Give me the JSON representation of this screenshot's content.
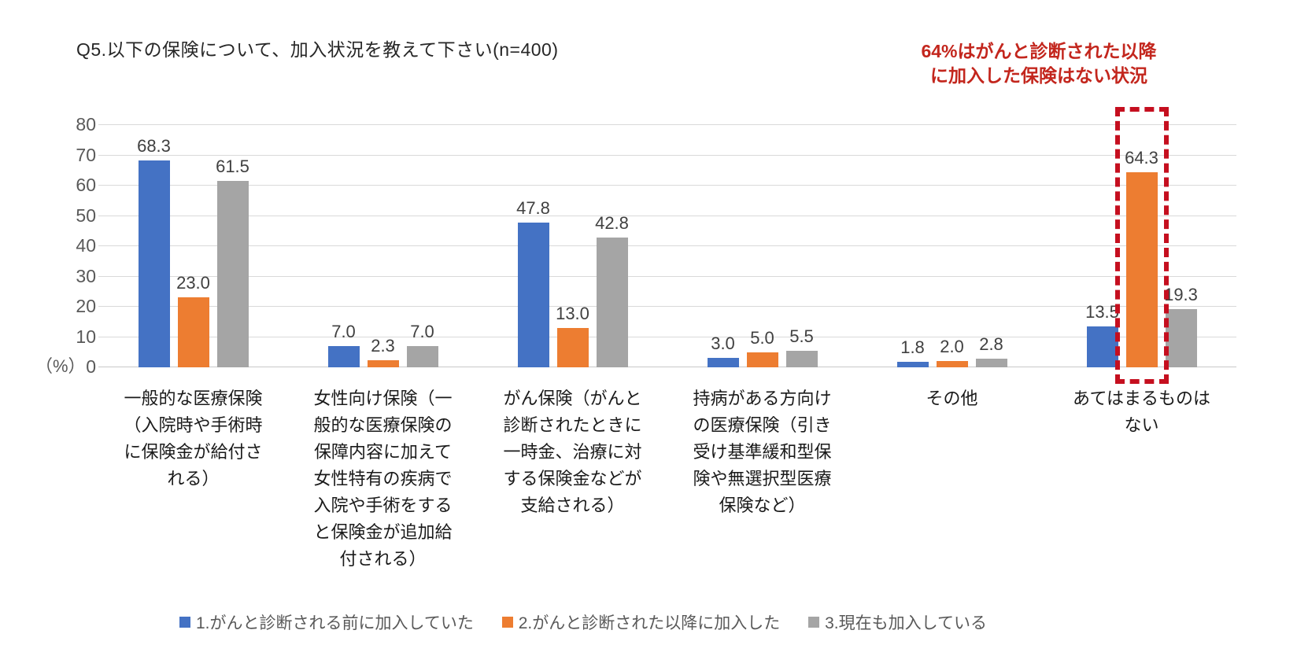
{
  "title": "Q5.以下の保険について、加入状況を教えて下さい(n=400)",
  "annotation": {
    "line1": "64%はがんと診断された以降",
    "line2": "に加入した保険はない状況",
    "color": "#C3261D"
  },
  "y_axis": {
    "unit_label": "（%）",
    "tick_labels": [
      "0",
      "10",
      "20",
      "30",
      "40",
      "50",
      "60",
      "70",
      "80"
    ]
  },
  "colors": {
    "series_blue": "#4472C4",
    "series_orange": "#ED7D31",
    "series_gray": "#A5A5A5",
    "gridline": "#D9D9D9",
    "axis_text": "#595959",
    "value_label": "#404040",
    "highlight_red": "#C50F1F"
  },
  "chart_data": {
    "type": "bar",
    "title": "Q5.以下の保険について、加入状況を教えて下さい(n=400)",
    "categories": [
      "一般的な医療保険（入院時や手術時に保険金が給付される）",
      "女性向け保険（一般的な医療保険の保障内容に加えて女性特有の疾病で入院や手術をすると保険金が追加給付される）",
      "がん保険（がんと診断されたときに一時金、治療に対する保険金などが支給される）",
      "持病がある方向けの医療保険（引き受け基準緩和型保険や無選択型医療保険など）",
      "その他",
      "あてはまるものはない"
    ],
    "series": [
      {
        "name": "1.がんと診断される前に加入していた",
        "color": "#4472C4",
        "values": [
          68.3,
          7.0,
          47.8,
          3.0,
          1.8,
          13.5
        ]
      },
      {
        "name": "2.がんと診断された以降に加入した",
        "color": "#ED7D31",
        "values": [
          23.0,
          2.3,
          13.0,
          5.0,
          2.0,
          64.3
        ]
      },
      {
        "name": "3.現在も加入している",
        "color": "#A5A5A5",
        "values": [
          61.5,
          7.0,
          42.8,
          5.5,
          2.8,
          19.3
        ]
      }
    ],
    "xlabel": "",
    "ylabel": "（%）",
    "ylim": [
      0,
      80
    ],
    "ytick_step": 10,
    "grid": true,
    "legend_position": "bottom",
    "value_labels_decimals": 1,
    "highlight": {
      "category_index": 5,
      "series_index": 1,
      "style": "red-dashed-box",
      "color": "#C50F1F"
    }
  }
}
